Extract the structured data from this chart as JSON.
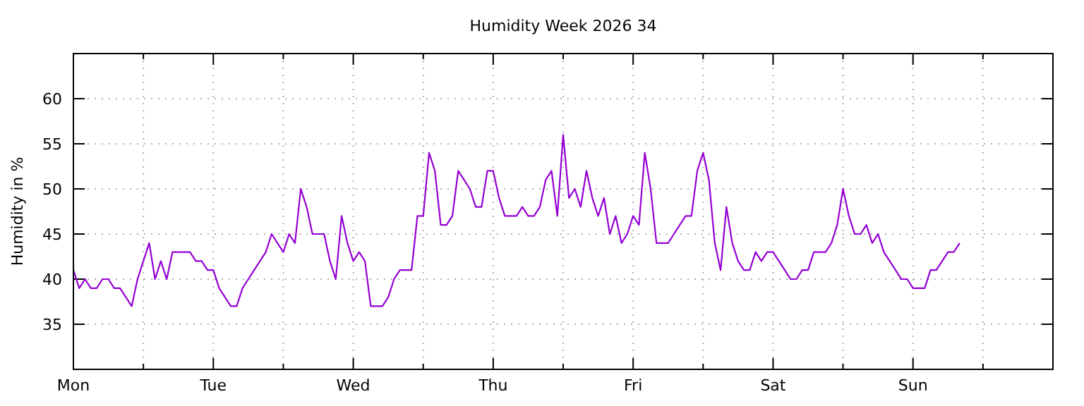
{
  "chart_data": {
    "type": "line",
    "title": "Humidity Week 2026 34",
    "ylabel": "Humidity in %",
    "categories": [
      "Mon",
      null,
      null,
      null,
      null,
      null,
      null,
      null,
      null,
      null,
      null,
      null,
      null,
      null,
      null,
      null,
      null,
      null,
      null,
      null,
      null,
      null,
      null,
      null,
      "Tue",
      null,
      null,
      null,
      null,
      null,
      null,
      null,
      null,
      null,
      null,
      null,
      null,
      null,
      null,
      null,
      null,
      null,
      null,
      null,
      null,
      null,
      null,
      null,
      "Wed",
      null,
      null,
      null,
      null,
      null,
      null,
      null,
      null,
      null,
      null,
      null,
      null,
      null,
      null,
      null,
      null,
      null,
      null,
      null,
      null,
      null,
      null,
      null,
      "Thu",
      null,
      null,
      null,
      null,
      null,
      null,
      null,
      null,
      null,
      null,
      null,
      null,
      null,
      null,
      null,
      null,
      null,
      null,
      null,
      null,
      null,
      null,
      null,
      "Fri",
      null,
      null,
      null,
      null,
      null,
      null,
      null,
      null,
      null,
      null,
      null,
      null,
      null,
      null,
      null,
      null,
      null,
      null,
      null,
      null,
      null,
      null,
      null,
      "Sat",
      null,
      null,
      null,
      null,
      null,
      null,
      null,
      null,
      null,
      null,
      null,
      null,
      null,
      null,
      null,
      null,
      null,
      null,
      null,
      null,
      null,
      null,
      null,
      "Sun",
      null,
      null,
      null,
      null,
      null,
      null,
      null,
      null,
      null,
      null,
      null,
      null,
      null,
      null,
      null,
      null,
      null,
      null,
      null,
      null,
      null,
      null,
      null,
      null
    ],
    "series": [
      {
        "color": "#9400d3",
        "values": [
          41,
          39,
          40,
          39,
          39,
          40,
          40,
          39,
          39,
          38,
          37,
          40,
          42,
          44,
          40,
          42,
          40,
          43,
          43,
          43,
          43,
          42,
          42,
          41,
          41,
          39,
          38,
          37,
          37,
          39,
          40,
          41,
          42,
          43,
          45,
          44,
          43,
          45,
          44,
          50,
          48,
          45,
          45,
          45,
          42,
          40,
          47,
          44,
          42,
          43,
          42,
          37,
          37,
          37,
          38,
          40,
          41,
          41,
          41,
          47,
          47,
          54,
          52,
          46,
          46,
          47,
          52,
          51,
          50,
          48,
          48,
          52,
          52,
          49,
          47,
          47,
          47,
          48,
          47,
          47,
          48,
          51,
          52,
          47,
          56,
          49,
          50,
          48,
          52,
          49,
          47,
          49,
          45,
          47,
          44,
          45,
          47,
          46,
          54,
          50,
          44,
          44,
          44,
          45,
          46,
          47,
          47,
          52,
          54,
          51,
          44,
          41,
          48,
          44,
          42,
          41,
          41,
          43,
          42,
          43,
          43,
          42,
          41,
          40,
          40,
          41,
          41,
          43,
          43,
          43,
          44,
          46,
          50,
          47,
          45,
          45,
          46,
          44,
          45,
          43,
          42,
          41,
          40,
          40,
          39,
          39,
          39,
          41,
          41,
          42,
          43,
          43,
          44,
          null,
          null,
          null,
          null,
          null,
          null,
          null,
          null,
          null,
          null,
          null,
          null,
          null,
          null,
          null,
          null
        ]
      }
    ],
    "ylim": [
      30,
      65
    ],
    "yticks": [
      35,
      40,
      45,
      50,
      55,
      60
    ],
    "grid": true,
    "line_style": "solid"
  }
}
